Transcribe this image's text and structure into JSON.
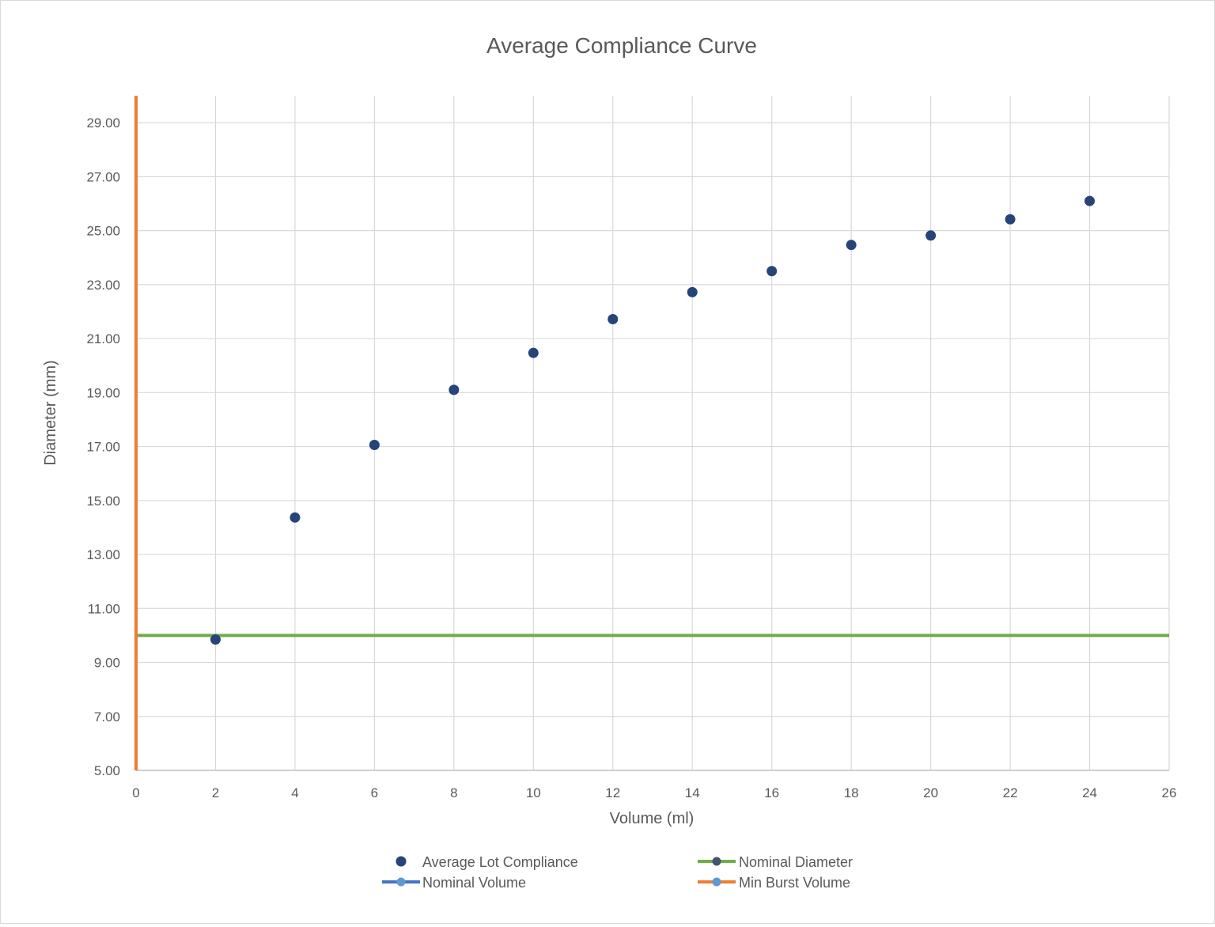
{
  "chart_data": {
    "type": "scatter",
    "title": "Average Compliance Curve",
    "xlabel": "Volume (ml)",
    "ylabel": "Diameter (mm)",
    "xlim": [
      0,
      26
    ],
    "ylim": [
      5,
      30
    ],
    "x_ticks": [
      0,
      2,
      4,
      6,
      8,
      10,
      12,
      14,
      16,
      18,
      20,
      22,
      24,
      26
    ],
    "y_ticks": [
      5,
      7,
      9,
      11,
      13,
      15,
      17,
      19,
      21,
      23,
      25,
      27,
      29
    ],
    "y_tick_labels": [
      "5.00",
      "7.00",
      "9.00",
      "11.00",
      "13.00",
      "15.00",
      "17.00",
      "19.00",
      "21.00",
      "23.00",
      "25.00",
      "27.00",
      "29.00"
    ],
    "grid": true,
    "legend_position": "bottom",
    "series": [
      {
        "name": "Average Lot Compliance",
        "kind": "markers",
        "color": "#264478",
        "x": [
          2,
          4,
          6,
          8,
          10,
          12,
          14,
          16,
          18,
          20,
          22,
          24
        ],
        "y": [
          9.85,
          14.37,
          17.06,
          19.1,
          20.47,
          21.72,
          22.72,
          23.5,
          24.47,
          24.82,
          25.42,
          26.1
        ]
      },
      {
        "name": "Nominal Diameter",
        "kind": "hline",
        "color": "#70ad47",
        "marker_color": "#44546a",
        "y_value": 10,
        "x_range": [
          0,
          26
        ]
      },
      {
        "name": "Nominal Volume",
        "kind": "vline",
        "color": "#4472c4",
        "marker_color": "#5b9bd5",
        "x_value": 0,
        "y_range": [
          5,
          30
        ]
      },
      {
        "name": "Min Burst Volume",
        "kind": "vline",
        "color": "#ed7d31",
        "marker_color": "#5b9bd5",
        "x_value": 0,
        "y_range": [
          5,
          30
        ]
      }
    ]
  }
}
